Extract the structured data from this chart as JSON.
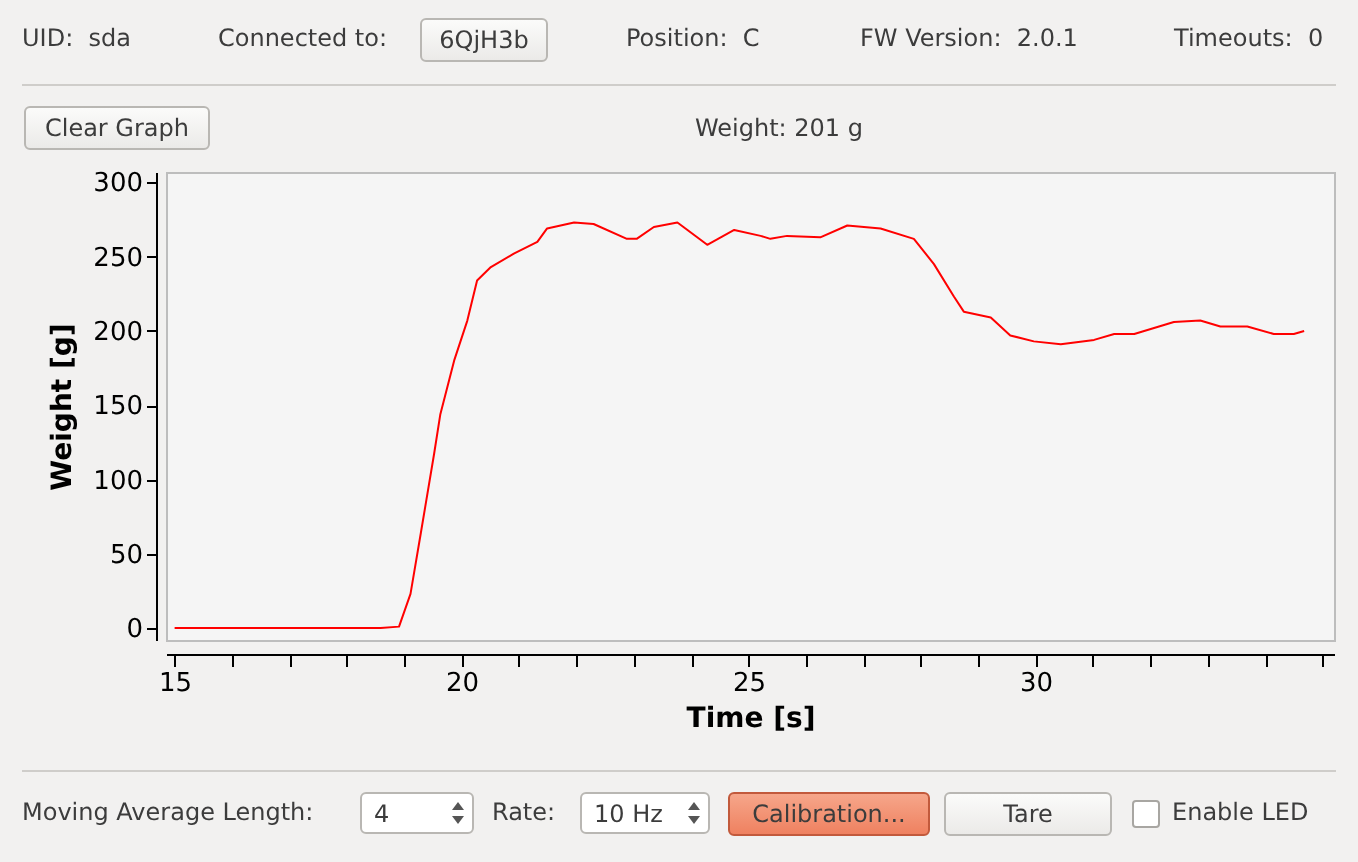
{
  "chart_data": {
    "type": "line",
    "subtitle": "Weight: 201 g",
    "xlabel": "Time [s]",
    "ylabel": "Weight [g]",
    "annotations": [
      "UID:  sda",
      "Connected to:",
      "6QjH3b",
      "Position:  C",
      "FW Version:  2.0.1",
      "Timeouts:  0",
      "Clear Graph",
      "Moving Average Length:",
      "4",
      "Rate:",
      "10 Hz",
      "Calibration...",
      "Tare",
      "Enable LED"
    ],
    "x": [
      15.0,
      18.59,
      18.91,
      19.11,
      19.29,
      19.52,
      19.63,
      19.87,
      20.1,
      20.27,
      20.51,
      20.91,
      21.32,
      21.49,
      21.96,
      22.3,
      22.88,
      23.05,
      23.35,
      23.76,
      24.28,
      24.75,
      25.21,
      25.38,
      25.67,
      26.25,
      26.72,
      27.3,
      27.88,
      28.23,
      28.58,
      28.75,
      29.22,
      29.56,
      29.97,
      30.44,
      31.02,
      31.37,
      31.72,
      32.41,
      32.87,
      33.22,
      33.69,
      34.15,
      34.5,
      34.68
    ],
    "series": [
      {
        "color": "#ff0000",
        "values": [
          0,
          0,
          1,
          23,
          64,
          117,
          144,
          180,
          207,
          234,
          243,
          252,
          260,
          269,
          273,
          272,
          262,
          262,
          270,
          273,
          258,
          268,
          264,
          262,
          264,
          263,
          271,
          269,
          262,
          245,
          223,
          213,
          209,
          197,
          193,
          191,
          194,
          198,
          198,
          206,
          207,
          203,
          203,
          198,
          198,
          200
        ]
      }
    ],
    "xlim": [
      14.85,
      35.2
    ],
    "ylim": [
      -8,
      307
    ],
    "xticks": [
      15,
      {
        "value": 16,
        "label": null
      },
      {
        "value": 17,
        "label": null
      },
      {
        "value": 18,
        "label": null
      },
      {
        "value": 19,
        "label": null
      },
      20,
      {
        "value": 21,
        "label": null
      },
      {
        "value": 22,
        "label": null
      },
      {
        "value": 23,
        "label": null
      },
      {
        "value": 24,
        "label": null
      },
      25,
      {
        "value": 26,
        "label": null
      },
      {
        "value": 27,
        "label": null
      },
      {
        "value": 28,
        "label": null
      },
      {
        "value": 29,
        "label": null
      },
      30,
      {
        "value": 31,
        "label": null
      },
      {
        "value": 32,
        "label": null
      },
      {
        "value": 33,
        "label": null
      },
      {
        "value": 34,
        "label": null
      },
      {
        "value": 35,
        "label": null
      }
    ],
    "yticks": [
      0,
      50,
      100,
      150,
      200,
      250,
      300
    ]
  }
}
